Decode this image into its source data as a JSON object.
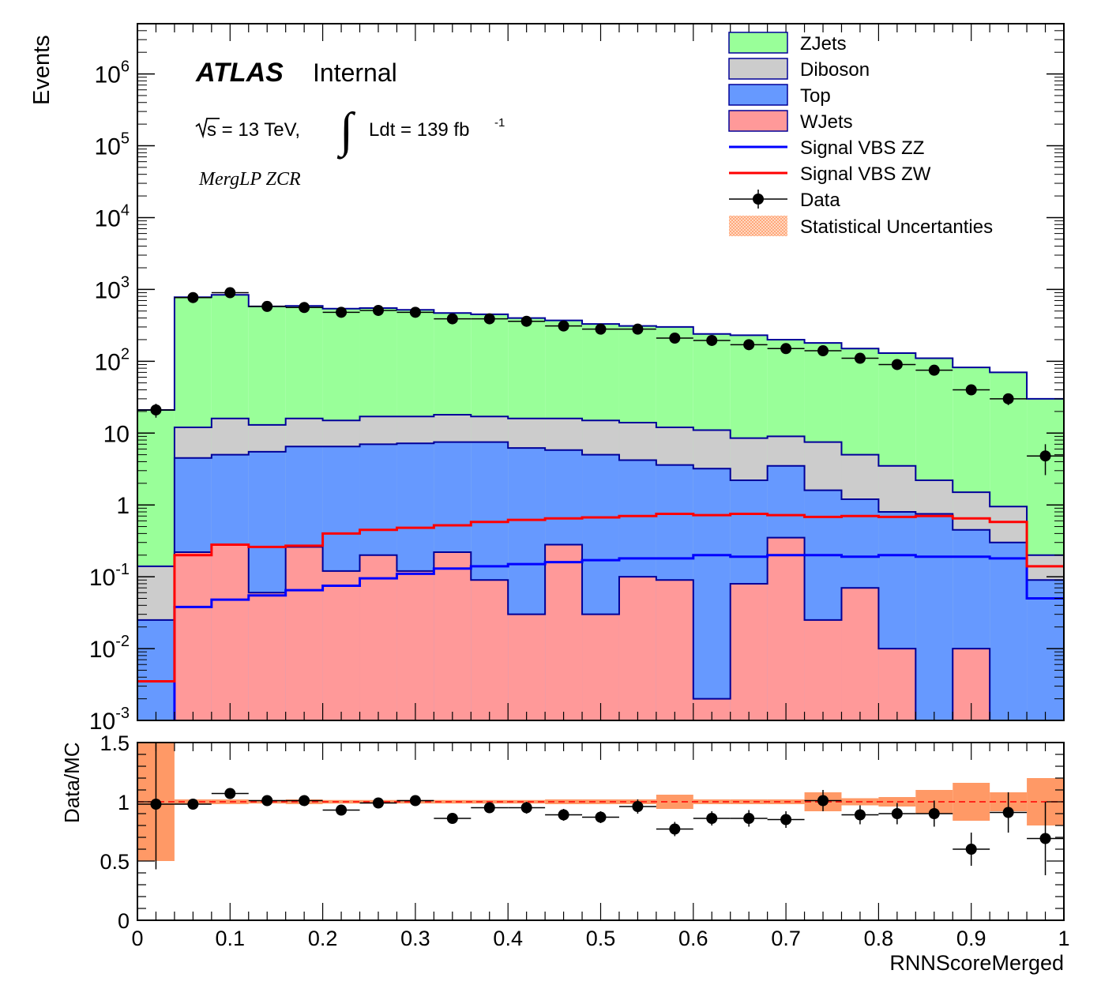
{
  "chart_data": [
    {
      "type": "area",
      "panel": "main",
      "ylabel": "Events",
      "ylog": true,
      "ylim": [
        0.001,
        5000000
      ],
      "xlim": [
        0,
        1
      ],
      "bin_edges": [
        0,
        0.04,
        0.08,
        0.12,
        0.16,
        0.2,
        0.24,
        0.28,
        0.32,
        0.36,
        0.4,
        0.44,
        0.48,
        0.52,
        0.56,
        0.6,
        0.64,
        0.68,
        0.72,
        0.76,
        0.8,
        0.84,
        0.88,
        0.92,
        0.96,
        1.0
      ],
      "ytick_labels": [
        "10^-3",
        "10^-2",
        "10^-1",
        "1",
        "10",
        "10^2",
        "10^3",
        "10^4",
        "10^5",
        "10^6"
      ],
      "stack_order": [
        "WJets",
        "Top",
        "Diboson",
        "ZJets"
      ],
      "stacked_totals": {
        "WJets": [
          0.0001,
          0.22,
          0.28,
          0.06,
          0.26,
          0.12,
          0.2,
          0.12,
          0.22,
          0.09,
          0.03,
          0.28,
          0.03,
          0.1,
          0.09,
          0.002,
          0.08,
          0.35,
          0.025,
          0.07,
          0.01,
          0.0001,
          0.01,
          0.0001,
          0.0001
        ],
        "Top": [
          0.025,
          4.5,
          5.0,
          5.5,
          6.5,
          6.5,
          7.0,
          7.2,
          7.5,
          7.5,
          6.2,
          5.8,
          5.0,
          4.2,
          3.6,
          3.2,
          2.2,
          3.5,
          1.6,
          1.2,
          0.8,
          0.75,
          0.45,
          0.3,
          0.09
        ],
        "Diboson": [
          0.14,
          12,
          16,
          13,
          16,
          15,
          17,
          17,
          18,
          17,
          16,
          16,
          15,
          14,
          12,
          11,
          8.5,
          9,
          7.5,
          5,
          3.5,
          2.2,
          1.5,
          0.95,
          0.2
        ],
        "ZJets": [
          21,
          780,
          840,
          580,
          590,
          540,
          550,
          520,
          470,
          450,
          400,
          370,
          330,
          310,
          300,
          240,
          230,
          200,
          180,
          150,
          130,
          110,
          82,
          70,
          30
        ]
      },
      "series": [
        {
          "name": "Signal VBS ZZ",
          "type": "line",
          "values": [
            0.0001,
            0.038,
            0.048,
            0.055,
            0.065,
            0.075,
            0.095,
            0.11,
            0.13,
            0.14,
            0.15,
            0.16,
            0.17,
            0.18,
            0.18,
            0.2,
            0.19,
            0.2,
            0.2,
            0.19,
            0.2,
            0.19,
            0.19,
            0.18,
            0.05
          ]
        },
        {
          "name": "Signal VBS ZW",
          "type": "line",
          "values": [
            0.0035,
            0.2,
            0.28,
            0.26,
            0.27,
            0.4,
            0.45,
            0.48,
            0.52,
            0.58,
            0.62,
            0.65,
            0.67,
            0.7,
            0.75,
            0.72,
            0.75,
            0.72,
            0.68,
            0.7,
            0.68,
            0.7,
            0.65,
            0.58,
            0.14
          ]
        },
        {
          "name": "Data",
          "type": "points",
          "x": [
            0.02,
            0.06,
            0.1,
            0.14,
            0.18,
            0.22,
            0.26,
            0.3,
            0.34,
            0.38,
            0.42,
            0.46,
            0.5,
            0.54,
            0.58,
            0.62,
            0.66,
            0.7,
            0.74,
            0.78,
            0.82,
            0.86,
            0.9,
            0.94,
            0.98
          ],
          "values": [
            21,
            770,
            900,
            580,
            560,
            480,
            510,
            480,
            390,
            390,
            360,
            310,
            280,
            280,
            210,
            195,
            170,
            150,
            140,
            110,
            90,
            75,
            40,
            30,
            4.8
          ],
          "errors": [
            4.6,
            28,
            30,
            24,
            24,
            22,
            23,
            22,
            20,
            20,
            19,
            18,
            17,
            17,
            14,
            14,
            13,
            12,
            12,
            10.5,
            9.5,
            8.7,
            6.3,
            5.5,
            2.2
          ]
        },
        {
          "name": "Statistical Uncertanties",
          "type": "band"
        }
      ],
      "legend": [
        "ZJets",
        "Diboson",
        "Top",
        "WJets",
        "Signal VBS ZZ",
        "Signal VBS ZW",
        "Data",
        "Statistical Uncertanties"
      ],
      "legend_position": "top-right",
      "annotations": {
        "experiment": "ATLAS",
        "status": "Internal",
        "energy_prefix": "s = 13 TeV,",
        "lumi_prefix": "Ldt = 139 fb",
        "lumi_exp": "-1",
        "region": "MergLP ZCR"
      }
    },
    {
      "type": "scatter",
      "panel": "ratio",
      "ylabel": "Data/MC",
      "xlabel": "RNNScoreMerged",
      "xlim": [
        0,
        1
      ],
      "ylim": [
        0,
        1.5
      ],
      "x_ticks": [
        "0",
        "0.1",
        "0.2",
        "0.3",
        "0.4",
        "0.5",
        "0.6",
        "0.7",
        "0.8",
        "0.9",
        "1"
      ],
      "y_ticks": [
        "0",
        "0.5",
        "1",
        "1.5"
      ],
      "reference_line": 1,
      "x": [
        0.02,
        0.06,
        0.1,
        0.14,
        0.18,
        0.22,
        0.26,
        0.3,
        0.34,
        0.38,
        0.42,
        0.46,
        0.5,
        0.54,
        0.58,
        0.62,
        0.66,
        0.7,
        0.74,
        0.78,
        0.82,
        0.86,
        0.9,
        0.94,
        0.98
      ],
      "values": [
        0.98,
        0.98,
        1.07,
        1.01,
        1.01,
        0.93,
        0.99,
        1.01,
        0.86,
        0.95,
        0.95,
        0.89,
        0.87,
        0.96,
        0.77,
        0.86,
        0.86,
        0.85,
        1.01,
        0.89,
        0.9,
        0.9,
        0.6,
        0.91,
        0.69
      ],
      "errors": [
        0.55,
        0.04,
        0.04,
        0.04,
        0.04,
        0.04,
        0.04,
        0.04,
        0.04,
        0.04,
        0.05,
        0.05,
        0.05,
        0.06,
        0.06,
        0.06,
        0.07,
        0.07,
        0.09,
        0.08,
        0.09,
        0.11,
        0.14,
        0.17,
        0.31
      ],
      "mc_stat_uncertainty": [
        0.5,
        0.02,
        0.02,
        0.015,
        0.02,
        0.015,
        0.015,
        0.015,
        0.015,
        0.015,
        0.015,
        0.02,
        0.02,
        0.02,
        0.06,
        0.02,
        0.02,
        0.02,
        0.08,
        0.03,
        0.04,
        0.1,
        0.16,
        0.08,
        0.2
      ]
    }
  ],
  "colors": {
    "ZJets": "#99ff99",
    "Diboson": "#cccccc",
    "Top": "#6699ff",
    "WJets": "#ff9999",
    "stack_outline": "#000099",
    "signal_zz": "#0000ff",
    "signal_zw": "#ff0000",
    "data": "#000000",
    "uncertainty": "#ff9966"
  }
}
